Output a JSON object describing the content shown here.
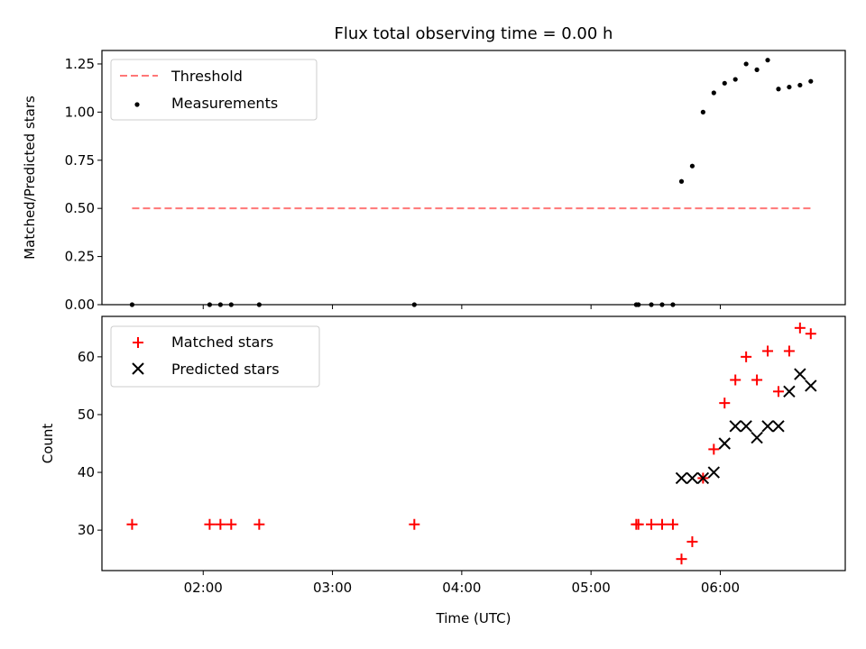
{
  "chart_data": [
    {
      "type": "scatter",
      "title": "Flux total observing time = 0.00 h",
      "xlabel": "",
      "ylabel": "Matched/Predicted stars",
      "xlim": [
        "01:13",
        "06:58"
      ],
      "ylim": [
        0,
        1.32
      ],
      "yticks": [
        "0.00",
        "0.25",
        "0.50",
        "0.75",
        "1.00",
        "1.25"
      ],
      "ytick_values": [
        0,
        0.25,
        0.5,
        0.75,
        1.0,
        1.25
      ],
      "grid": false,
      "legend_position": "upper left",
      "threshold": {
        "name": "Threshold",
        "color": "#ff7777",
        "value": 0.5,
        "x": [
          "01:27",
          "06:42"
        ]
      },
      "series": [
        {
          "name": "Measurements",
          "color": "#000000",
          "points": [
            [
              "01:27",
              0.0
            ],
            [
              "02:03",
              0.0
            ],
            [
              "02:08",
              0.0
            ],
            [
              "02:13",
              0.0
            ],
            [
              "02:26",
              0.0
            ],
            [
              "03:38",
              0.0
            ],
            [
              "05:21",
              0.0
            ],
            [
              "05:22",
              0.0
            ],
            [
              "05:28",
              0.0
            ],
            [
              "05:33",
              0.0
            ],
            [
              "05:38",
              0.0
            ],
            [
              "05:42",
              0.64
            ],
            [
              "05:47",
              0.72
            ],
            [
              "05:52",
              1.0
            ],
            [
              "05:57",
              1.1
            ],
            [
              "06:02",
              1.15
            ],
            [
              "06:07",
              1.17
            ],
            [
              "06:12",
              1.25
            ],
            [
              "06:17",
              1.22
            ],
            [
              "06:22",
              1.27
            ],
            [
              "06:27",
              1.12
            ],
            [
              "06:32",
              1.13
            ],
            [
              "06:37",
              1.14
            ],
            [
              "06:42",
              1.16
            ]
          ]
        }
      ]
    },
    {
      "type": "scatter",
      "title": "",
      "xlabel": "Time (UTC)",
      "ylabel": "Count",
      "xlim": [
        "01:13",
        "06:58"
      ],
      "ylim": [
        23,
        67
      ],
      "yticks": [
        "30",
        "40",
        "50",
        "60"
      ],
      "ytick_values": [
        30,
        40,
        50,
        60
      ],
      "xticks": [
        "02:00",
        "03:00",
        "04:00",
        "05:00",
        "06:00"
      ],
      "grid": false,
      "legend_position": "upper left",
      "series": [
        {
          "name": "Matched stars",
          "marker": "plus",
          "color": "#ff0000",
          "points": [
            [
              "01:27",
              31
            ],
            [
              "02:03",
              31
            ],
            [
              "02:08",
              31
            ],
            [
              "02:13",
              31
            ],
            [
              "02:26",
              31
            ],
            [
              "03:38",
              31
            ],
            [
              "05:21",
              31
            ],
            [
              "05:22",
              31
            ],
            [
              "05:28",
              31
            ],
            [
              "05:33",
              31
            ],
            [
              "05:38",
              31
            ],
            [
              "05:42",
              25
            ],
            [
              "05:47",
              28
            ],
            [
              "05:52",
              39
            ],
            [
              "05:57",
              44
            ],
            [
              "06:02",
              52
            ],
            [
              "06:07",
              56
            ],
            [
              "06:12",
              60
            ],
            [
              "06:17",
              56
            ],
            [
              "06:22",
              61
            ],
            [
              "06:27",
              54
            ],
            [
              "06:32",
              61
            ],
            [
              "06:37",
              65
            ],
            [
              "06:42",
              64
            ]
          ]
        },
        {
          "name": "Predicted stars",
          "marker": "x",
          "color": "#000000",
          "points": [
            [
              "05:42",
              39
            ],
            [
              "05:47",
              39
            ],
            [
              "05:52",
              39
            ],
            [
              "05:57",
              40
            ],
            [
              "06:02",
              45
            ],
            [
              "06:07",
              48
            ],
            [
              "06:12",
              48
            ],
            [
              "06:17",
              46
            ],
            [
              "06:22",
              48
            ],
            [
              "06:27",
              48
            ],
            [
              "06:32",
              54
            ],
            [
              "06:37",
              57
            ],
            [
              "06:42",
              55
            ]
          ]
        }
      ]
    }
  ]
}
